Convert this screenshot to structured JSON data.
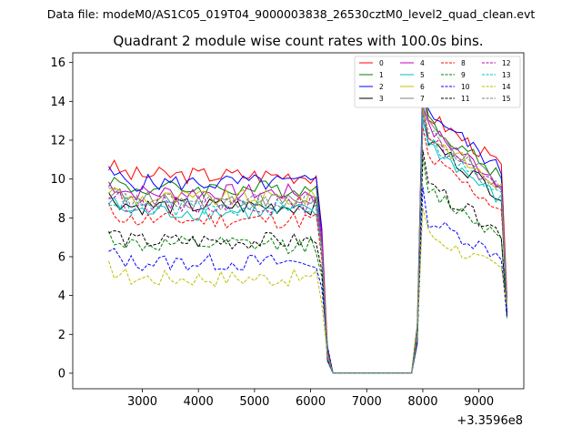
{
  "figure": {
    "suptitle": "Data file: modeM0/AS1C05_019T04_9000003838_26530cztM0_level2_quad_clean.evt"
  },
  "chart_data": {
    "type": "line",
    "title": "Quadrant 2 module wise count rates with 100.0s bins.",
    "xlabel": "",
    "ylabel": "",
    "x_offset_label": "+3.3596e8",
    "xlim": [
      1760,
      9800
    ],
    "ylim": [
      -0.8,
      16.5
    ],
    "xticks": [
      3000,
      4000,
      5000,
      6000,
      7000,
      8000,
      9000
    ],
    "xtick_labels": [
      "3000",
      "4000",
      "5000",
      "6000",
      "7000",
      "8000",
      "9000"
    ],
    "yticks": [
      0,
      2,
      4,
      6,
      8,
      10,
      12,
      14,
      16
    ],
    "ytick_labels": [
      "0",
      "2",
      "4",
      "6",
      "8",
      "10",
      "12",
      "14",
      "16"
    ],
    "grid": false,
    "legend_position": "top-right",
    "x": [
      2400,
      2500,
      2600,
      2700,
      2800,
      2900,
      3000,
      3100,
      3200,
      3300,
      3400,
      3500,
      3600,
      3700,
      3800,
      3900,
      4000,
      4100,
      4200,
      4300,
      4400,
      4500,
      4600,
      4700,
      4800,
      4900,
      5000,
      5100,
      5200,
      5300,
      5400,
      5500,
      5600,
      5700,
      5800,
      5900,
      6000,
      6100,
      6200,
      6300,
      6400,
      6500,
      6600,
      6700,
      6800,
      6900,
      7000,
      7100,
      7200,
      7300,
      7400,
      7500,
      7600,
      7700,
      7800,
      7900,
      8000,
      8100,
      8200,
      8300,
      8400,
      8500,
      8600,
      8700,
      8800,
      8900,
      9000,
      9100,
      9200,
      9300,
      9400,
      9500
    ],
    "series": [
      {
        "name": "0",
        "color": "#ff0000",
        "style": "solid",
        "base": 10.2,
        "high": 13.5
      },
      {
        "name": "1",
        "color": "#008000",
        "style": "solid",
        "base": 9.5,
        "high": 13.2
      },
      {
        "name": "2",
        "color": "#0000ff",
        "style": "solid",
        "base": 9.8,
        "high": 13.8
      },
      {
        "name": "3",
        "color": "#000000",
        "style": "solid",
        "base": 8.6,
        "high": 12.2
      },
      {
        "name": "4",
        "color": "#bf00bf",
        "style": "solid",
        "base": 9.3,
        "high": 12.8
      },
      {
        "name": "5",
        "color": "#00bfbf",
        "style": "solid",
        "base": 8.3,
        "high": 12.0
      },
      {
        "name": "6",
        "color": "#bfbf00",
        "style": "solid",
        "base": 9.0,
        "high": 12.5
      },
      {
        "name": "7",
        "color": "#808080",
        "style": "solid",
        "base": 8.9,
        "high": 12.9
      },
      {
        "name": "8",
        "color": "#ff0000",
        "style": "dashed",
        "base": 7.9,
        "high": 11.3
      },
      {
        "name": "9",
        "color": "#008000",
        "style": "dashed",
        "base": 6.6,
        "high": 9.6
      },
      {
        "name": "10",
        "color": "#0000ff",
        "style": "dashed",
        "base": 5.7,
        "high": 8.0
      },
      {
        "name": "11",
        "color": "#000000",
        "style": "dashed",
        "base": 6.8,
        "high": 9.8
      },
      {
        "name": "12",
        "color": "#bf00bf",
        "style": "dashed",
        "base": 8.7,
        "high": 12.4
      },
      {
        "name": "13",
        "color": "#00bfbf",
        "style": "dashed",
        "base": 8.5,
        "high": 12.2
      },
      {
        "name": "14",
        "color": "#bfbf00",
        "style": "dashed",
        "base": 4.9,
        "high": 7.3
      },
      {
        "name": "15",
        "color": "#808080",
        "style": "dashed",
        "base": 8.8,
        "high": 12.6
      }
    ]
  }
}
